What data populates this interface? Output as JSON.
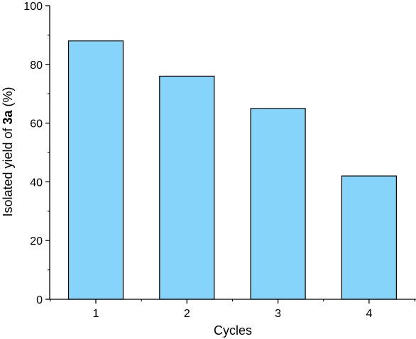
{
  "chart_data": {
    "type": "bar",
    "categories": [
      "1",
      "2",
      "3",
      "4"
    ],
    "values": [
      88,
      76,
      65,
      42
    ],
    "title": "",
    "xlabel": "Cycles",
    "ylabel": {
      "prefix": "Isolated yield of ",
      "bold": "3a",
      "suffix": " (%)"
    },
    "ylim": [
      0,
      100
    ],
    "yticks": [
      0,
      20,
      40,
      60,
      80,
      100
    ],
    "bar_color": "#87d4fb",
    "bar_edge_color": "#000000",
    "grid": false,
    "legend": "none"
  }
}
